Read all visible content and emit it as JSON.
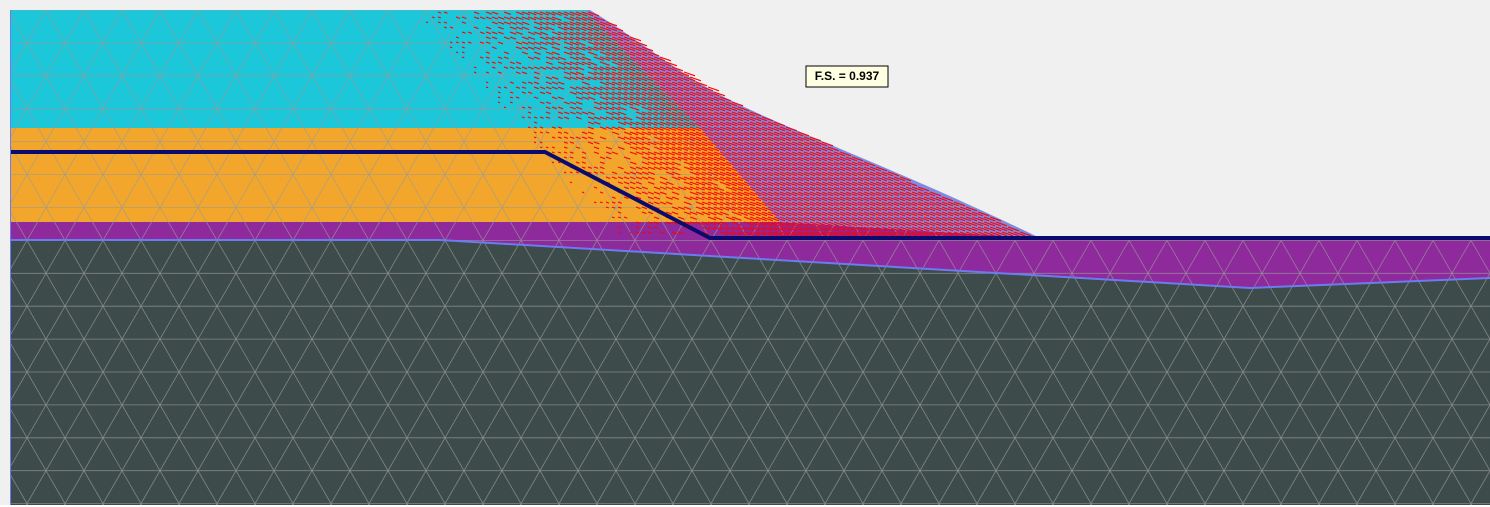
{
  "annotation": {
    "label": "F.S. = 0.937"
  }
}
